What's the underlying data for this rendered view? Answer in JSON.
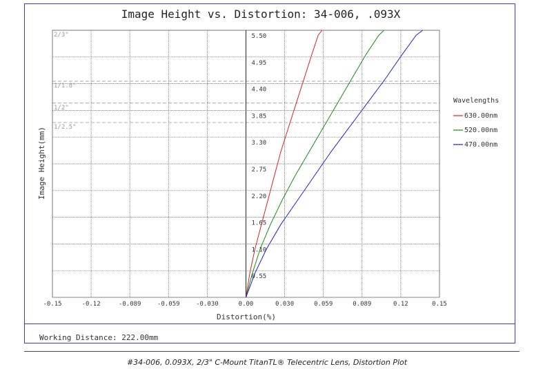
{
  "chart_data": {
    "type": "line",
    "title": "Image Height vs. Distortion: 34-006, .093X",
    "xlabel": "Distortion(%)",
    "ylabel": "Image Height(mm)",
    "xlim": [
      -0.15,
      0.15
    ],
    "ylim": [
      0,
      5.5
    ],
    "grid": true,
    "x_ticks": [
      "-0.15",
      "-0.12",
      "-0.089",
      "-0.059",
      "-0.030",
      "0.00",
      "0.030",
      "0.059",
      "0.089",
      "0.12",
      "0.15"
    ],
    "y_ticks": [
      "0.55",
      "1.10",
      "1.65",
      "2.20",
      "2.75",
      "3.30",
      "3.85",
      "4.40",
      "4.95",
      "5.50"
    ],
    "sensor_lines": [
      {
        "label": "2/3\"",
        "y": 5.5
      },
      {
        "label": "1/1.8\"",
        "y": 4.45
      },
      {
        "label": "1/2\"",
        "y": 4.0
      },
      {
        "label": "1/2.5\"",
        "y": 3.6
      }
    ],
    "legend_title": "Wavelengths",
    "legend_position": "right",
    "series": [
      {
        "name": "630.00nm",
        "color": "#e02020",
        "x": [
          0,
          0.003,
          0.007,
          0.012,
          0.017,
          0.022,
          0.027,
          0.033,
          0.039,
          0.045,
          0.051,
          0.056,
          0.059
        ],
        "y": [
          0,
          0.5,
          1.0,
          1.5,
          2.0,
          2.5,
          3.0,
          3.5,
          4.0,
          4.5,
          5.0,
          5.4,
          5.5
        ]
      },
      {
        "name": "520.00nm",
        "color": "#1a8a1a",
        "x": [
          0,
          0.005,
          0.011,
          0.019,
          0.028,
          0.038,
          0.049,
          0.06,
          0.071,
          0.082,
          0.093,
          0.103,
          0.107
        ],
        "y": [
          0,
          0.5,
          1.0,
          1.5,
          2.0,
          2.5,
          3.0,
          3.5,
          4.0,
          4.5,
          5.0,
          5.4,
          5.5
        ]
      },
      {
        "name": "470.00nm",
        "color": "#2020d0",
        "x": [
          0,
          0.007,
          0.016,
          0.027,
          0.04,
          0.053,
          0.066,
          0.08,
          0.094,
          0.108,
          0.121,
          0.132,
          0.137
        ],
        "y": [
          0,
          0.5,
          1.0,
          1.5,
          2.0,
          2.5,
          3.0,
          3.5,
          4.0,
          4.5,
          5.0,
          5.4,
          5.5
        ]
      }
    ]
  },
  "footer": {
    "working_distance": "Working Distance: 222.00mm"
  },
  "caption": "#34-006, 0.093X, 2/3\" C-Mount TitanTL® Telecentric Lens, Distortion Plot"
}
